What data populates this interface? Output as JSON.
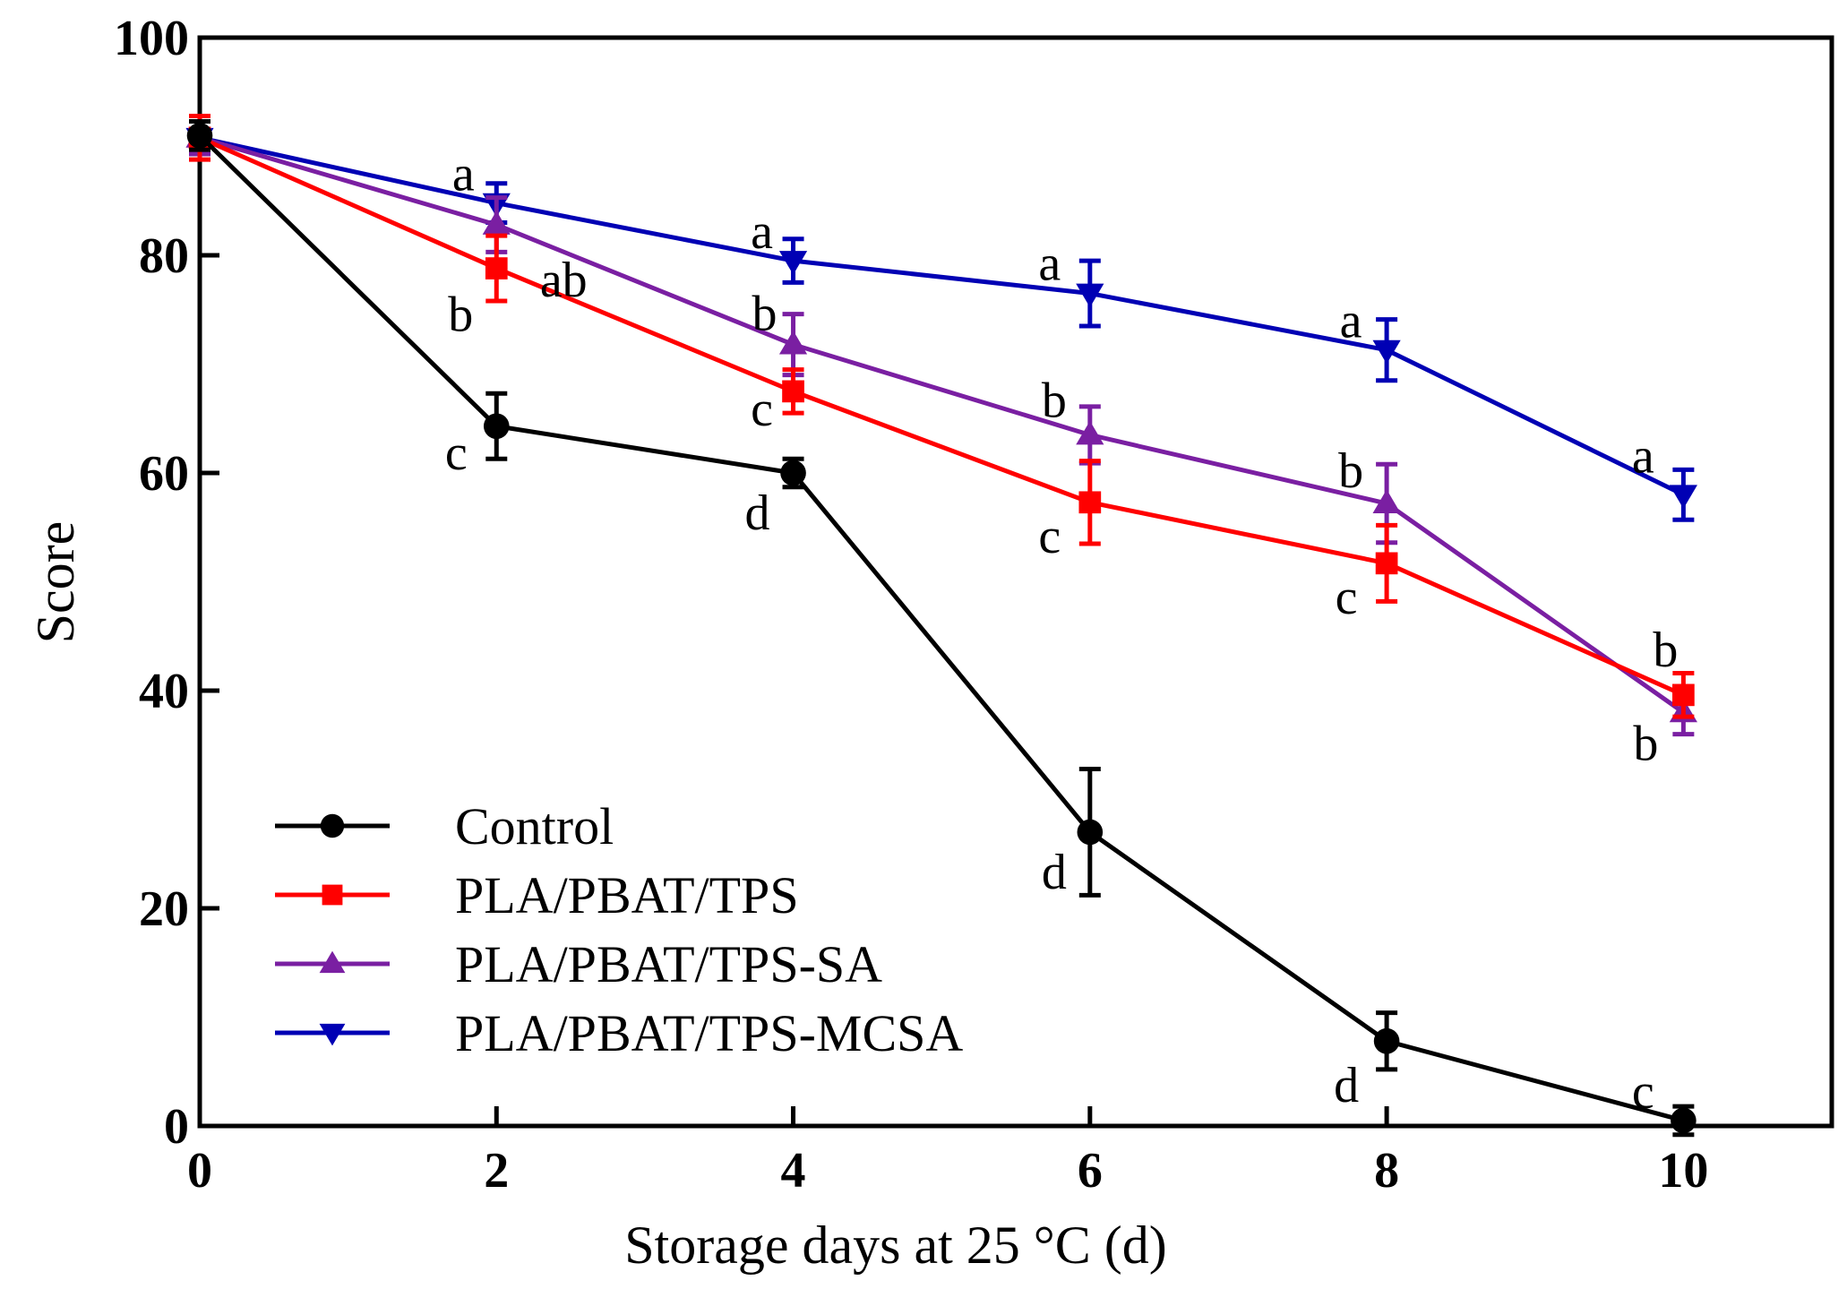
{
  "chart_data": {
    "type": "line",
    "title": "",
    "xlabel": "Storage days at 25 °C (d)",
    "ylabel": "Score",
    "xlim": [
      0,
      11
    ],
    "ylim": [
      0,
      100
    ],
    "x_ticks": [
      0,
      2,
      4,
      6,
      8,
      10
    ],
    "y_ticks": [
      0,
      20,
      40,
      60,
      80,
      100
    ],
    "x": [
      0,
      2,
      4,
      6,
      8,
      10
    ],
    "grid": false,
    "legend_position": "bottom-left",
    "series": [
      {
        "name": "Control",
        "color": "#000000",
        "marker": "circle",
        "values": [
          91.0,
          64.3,
          60.0,
          27.0,
          7.8,
          0.5
        ],
        "errors": [
          1.3,
          3.0,
          1.3,
          5.8,
          2.6,
          1.3
        ],
        "letters": [
          "",
          "c",
          "d",
          "d",
          "d",
          "c"
        ]
      },
      {
        "name": "PLA/PBAT/TPS",
        "color": "#ff0000",
        "marker": "square",
        "values": [
          90.8,
          78.8,
          67.5,
          57.3,
          51.7,
          39.6
        ],
        "errors": [
          2.0,
          3.0,
          2.0,
          3.8,
          3.5,
          2.0
        ],
        "letters": [
          "",
          "b",
          "c",
          "c",
          "c",
          "b"
        ]
      },
      {
        "name": "PLA/PBAT/TPS-SA",
        "color": "#7a1fa2",
        "marker": "triangle-up",
        "values": [
          90.8,
          82.8,
          71.8,
          63.5,
          57.2,
          38.0
        ],
        "errors": [
          1.5,
          2.5,
          2.8,
          2.6,
          3.6,
          2.0
        ],
        "letters": [
          "",
          "ab",
          "b",
          "b",
          "b",
          "b"
        ]
      },
      {
        "name": "PLA/PBAT/TPS-MCSA",
        "color": "#0000b4",
        "marker": "triangle-down",
        "values": [
          90.8,
          84.8,
          79.5,
          76.5,
          71.3,
          58.0
        ],
        "errors": [
          1.5,
          1.8,
          2.0,
          3.0,
          2.8,
          2.3
        ],
        "letters": [
          "",
          "a",
          "a",
          "a",
          "a",
          "a"
        ]
      }
    ]
  }
}
